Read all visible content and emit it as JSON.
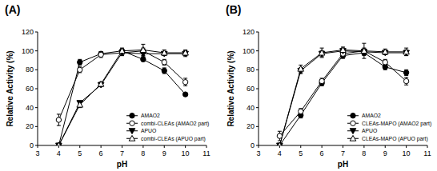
{
  "chart_data": [
    {
      "type": "line",
      "title": "(A)",
      "x_label": "pH",
      "y_label": "Relative Activity (%)",
      "x": [
        4,
        5,
        6,
        7,
        8,
        9,
        10
      ],
      "xlim": [
        3,
        11
      ],
      "xticks": [
        3,
        4,
        5,
        6,
        7,
        8,
        9,
        10,
        11
      ],
      "ylim": [
        0,
        120
      ],
      "yticks": [
        0,
        20,
        40,
        60,
        80,
        100,
        120
      ],
      "legend": "lower-right",
      "series": [
        {
          "name": "AMAO2",
          "color": "#000000",
          "marker": "circle",
          "line_style": "solid",
          "values": [
            0,
            88,
            97,
            100,
            91,
            79,
            54
          ],
          "errors": [
            1,
            3,
            2,
            2,
            2,
            3,
            2
          ]
        },
        {
          "name": "combi-CLEAs (AMAO2 part)",
          "color": "#000000",
          "marker": "circle-open",
          "line_style": "solid",
          "values": [
            27,
            80,
            96,
            98,
            100,
            88,
            67
          ],
          "errors": [
            6,
            3,
            3,
            3,
            3,
            3,
            4
          ]
        },
        {
          "name": "APUO",
          "color": "#000000",
          "marker": "triangle-down",
          "line_style": "solid",
          "values": [
            0,
            45,
            64,
            98,
            97,
            97,
            97
          ],
          "errors": [
            1,
            2,
            2,
            3,
            3,
            2,
            3
          ]
        },
        {
          "name": "combi-CLEAs (APUO part)",
          "color": "#000000",
          "marker": "triangle-up-open",
          "line_style": "solid",
          "values": [
            0,
            43,
            65,
            100,
            101,
            98,
            98
          ],
          "errors": [
            1,
            3,
            2,
            3,
            6,
            3,
            3
          ]
        }
      ]
    },
    {
      "type": "line",
      "title": "(B)",
      "x_label": "pH",
      "y_label": "Relative Activity (%)",
      "x": [
        4,
        5,
        6,
        7,
        8,
        9,
        10
      ],
      "xlim": [
        3,
        11
      ],
      "xticks": [
        3,
        4,
        5,
        6,
        7,
        8,
        9,
        10,
        11
      ],
      "ylim": [
        0,
        120
      ],
      "yticks": [
        0,
        20,
        40,
        60,
        80,
        100,
        120
      ],
      "legend": "lower-right",
      "series": [
        {
          "name": "AMAO2",
          "color": "#000000",
          "marker": "circle",
          "line_style": "solid",
          "values": [
            0,
            32,
            66,
            95,
            98,
            83,
            77
          ],
          "errors": [
            1,
            3,
            3,
            3,
            3,
            3,
            3
          ]
        },
        {
          "name": "CLEAs-MAPO (AMAO2 part)",
          "color": "#000000",
          "marker": "circle-open",
          "line_style": "solid",
          "values": [
            10,
            36,
            68,
            97,
            100,
            88,
            68
          ],
          "errors": [
            5,
            3,
            3,
            3,
            8,
            3,
            4
          ]
        },
        {
          "name": "APUO",
          "color": "#000000",
          "marker": "triangle-down",
          "line_style": "solid",
          "values": [
            0,
            79,
            97,
            100,
            99,
            98,
            98
          ],
          "errors": [
            1,
            3,
            3,
            3,
            3,
            2,
            3
          ]
        },
        {
          "name": "CLEAs-MAPO (APUO part)",
          "color": "#000000",
          "marker": "triangle-up-open",
          "line_style": "solid",
          "values": [
            0,
            81,
            98,
            101,
            100,
            99,
            99
          ],
          "errors": [
            1,
            4,
            5,
            3,
            3,
            3,
            4
          ]
        }
      ]
    }
  ]
}
